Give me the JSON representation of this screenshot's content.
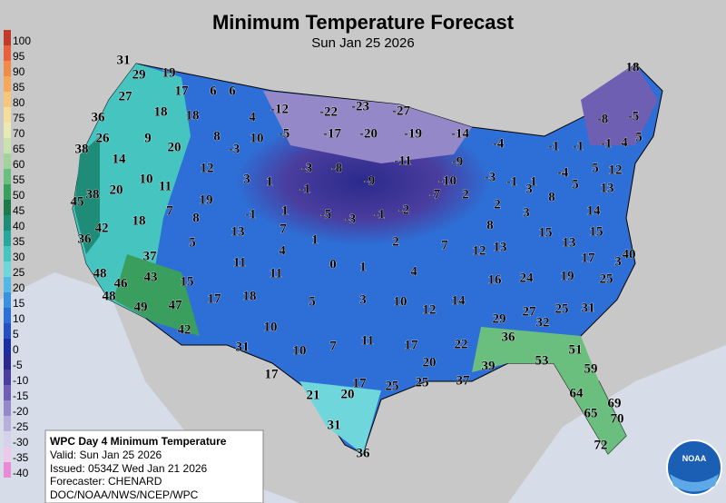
{
  "header": {
    "title": "Minimum Temperature Forecast",
    "subtitle": "Sun Jan 25 2026"
  },
  "legend": [
    {
      "label": "100",
      "color": "#c0392b"
    },
    {
      "label": "95",
      "color": "#e8603c"
    },
    {
      "label": "90",
      "color": "#f08c4a"
    },
    {
      "label": "85",
      "color": "#f5a85c"
    },
    {
      "label": "80",
      "color": "#f7c678"
    },
    {
      "label": "75",
      "color": "#f5dd9b"
    },
    {
      "label": "70",
      "color": "#e6ecb4"
    },
    {
      "label": "65",
      "color": "#c8e3b0"
    },
    {
      "label": "60",
      "color": "#a3d39c"
    },
    {
      "label": "55",
      "color": "#6bbf7e"
    },
    {
      "label": "50",
      "color": "#3a9e5f"
    },
    {
      "label": "45",
      "color": "#1d7a4a"
    },
    {
      "label": "40",
      "color": "#1f8c78"
    },
    {
      "label": "35",
      "color": "#2aa79b"
    },
    {
      "label": "30",
      "color": "#45c4c0"
    },
    {
      "label": "25",
      "color": "#6fd6dc"
    },
    {
      "label": "20",
      "color": "#52b8e8"
    },
    {
      "label": "15",
      "color": "#3a8fdf"
    },
    {
      "label": "10",
      "color": "#2d6fd6"
    },
    {
      "label": "5",
      "color": "#2550c2"
    },
    {
      "label": "0",
      "color": "#1b2fa0"
    },
    {
      "label": "-5",
      "color": "#2a2a8c"
    },
    {
      "label": "-10",
      "color": "#4a3d9e"
    },
    {
      "label": "-15",
      "color": "#6e5fb3"
    },
    {
      "label": "-20",
      "color": "#9488c8"
    },
    {
      "label": "-25",
      "color": "#b7b0da"
    },
    {
      "label": "-30",
      "color": "#d6d2ea"
    },
    {
      "label": "-35",
      "color": "#efc9ea"
    },
    {
      "label": "-40",
      "color": "#e88ad6"
    }
  ],
  "stations": [
    "31",
    "29",
    "19",
    "17",
    "6",
    "6",
    "27",
    "18",
    "18",
    "4",
    "-12",
    "-22",
    "-23",
    "-27",
    "18",
    "36",
    "9",
    "8",
    "10",
    "-5",
    "-17",
    "-20",
    "-19",
    "-14",
    "-8",
    "-5",
    "26",
    "20",
    "-3",
    "-4",
    "5",
    "38",
    "14",
    "12",
    "-11",
    "-9",
    "-1",
    "-1",
    "-1",
    "4",
    "10",
    "11",
    "3",
    "1",
    "-3",
    "-8",
    "-9",
    "-10",
    "-7",
    "2",
    "-3",
    "-1",
    "1",
    "-4",
    "5",
    "5",
    "12",
    "13",
    "45",
    "38",
    "20",
    "19",
    "-1",
    "8",
    "3",
    "2",
    "7",
    "8",
    "-1",
    "1",
    "-5",
    "-3",
    "-1",
    "-2",
    "8",
    "3",
    "14",
    "42",
    "18",
    "13",
    "7",
    "15",
    "15",
    "36",
    "5",
    "1",
    "2",
    "7",
    "12",
    "13",
    "13",
    "40",
    "37",
    "4",
    "17",
    "3",
    "48",
    "11",
    "0",
    "1",
    "4",
    "24",
    "19",
    "25",
    "46",
    "43",
    "15",
    "11",
    "16",
    "48",
    "17",
    "18",
    "5",
    "3",
    "10",
    "14",
    "49",
    "47",
    "12",
    "25",
    "31",
    "27",
    "32",
    "29",
    "42",
    "10",
    "36",
    "31",
    "10",
    "7",
    "11",
    "17",
    "22",
    "51",
    "20",
    "53",
    "39",
    "17",
    "59",
    "37",
    "25",
    "25",
    "21",
    "20",
    "17",
    "64",
    "69",
    "65",
    "70",
    "31",
    "36",
    "72"
  ],
  "info": {
    "title": "WPC Day 4 Minimum Temperature",
    "valid": "Valid: Sun Jan 25 2026",
    "issued": "Issued: 0534Z Wed Jan 21 2026",
    "forecaster": "Forecaster: CHENARD",
    "source": "DOC/NOAA/NWS/NCEP/WPC"
  },
  "logo_text": "NOAA"
}
